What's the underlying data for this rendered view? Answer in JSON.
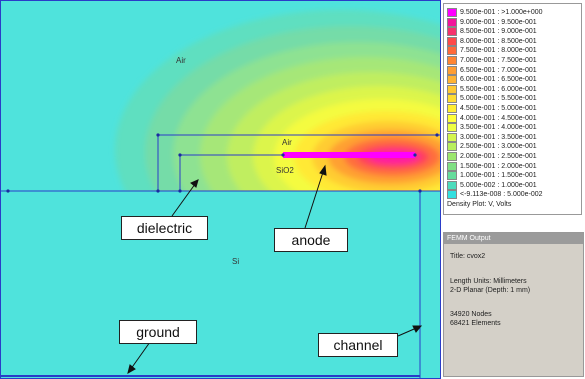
{
  "materials": {
    "air_upper": "Air",
    "air_lower": "Air",
    "sio2": "SiO2",
    "si": "Si"
  },
  "callouts": {
    "dielectric": "dielectric",
    "anode": "anode",
    "ground": "ground",
    "channel": "channel"
  },
  "legend": {
    "title": "Density Plot: V, Volts",
    "entries": [
      {
        "label": "9.500e-001 : >1.000e+000",
        "color": "#ff00ff"
      },
      {
        "label": "9.000e-001 : 9.500e-001",
        "color": "#f2159b"
      },
      {
        "label": "8.500e-001 : 9.000e-001",
        "color": "#f5336d"
      },
      {
        "label": "8.000e-001 : 8.500e-001",
        "color": "#ff4a4a"
      },
      {
        "label": "7.500e-001 : 8.000e-001",
        "color": "#ff6a3a"
      },
      {
        "label": "7.000e-001 : 7.500e-001",
        "color": "#ff8533"
      },
      {
        "label": "6.500e-001 : 7.000e-001",
        "color": "#ff9d33"
      },
      {
        "label": "6.000e-001 : 6.500e-001",
        "color": "#ffb333"
      },
      {
        "label": "5.500e-001 : 6.000e-001",
        "color": "#ffc933"
      },
      {
        "label": "5.000e-001 : 5.500e-001",
        "color": "#ffdd33"
      },
      {
        "label": "4.500e-001 : 5.000e-001",
        "color": "#ffee33"
      },
      {
        "label": "4.000e-001 : 4.500e-001",
        "color": "#ffff3a"
      },
      {
        "label": "3.500e-001 : 4.000e-001",
        "color": "#eeff44"
      },
      {
        "label": "3.000e-001 : 3.500e-001",
        "color": "#d4f54e"
      },
      {
        "label": "2.500e-001 : 3.000e-001",
        "color": "#b8ee5c"
      },
      {
        "label": "2.000e-001 : 2.500e-001",
        "color": "#9ce66e"
      },
      {
        "label": "1.500e-001 : 2.000e-001",
        "color": "#80e084"
      },
      {
        "label": "1.000e-001 : 1.500e-001",
        "color": "#66dc9c"
      },
      {
        "label": "5.000e-002 : 1.000e-001",
        "color": "#4cdcbc"
      },
      {
        "label": "<-9.113e-008 : 5.000e-002",
        "color": "#33e0e0"
      }
    ]
  },
  "output": {
    "header": "FEMM Output",
    "title_line": "Title: cvox2",
    "units_line": "Length Units: Millimeters",
    "problem_line": "2-D Planar (Depth: 1 mm)",
    "nodes_line": "34920 Nodes",
    "elements_line": "68421 Elements"
  },
  "colors": {
    "background_field": "#4fe3dc",
    "anode": "#ff00ff",
    "boundary": "#2a3cc8"
  }
}
